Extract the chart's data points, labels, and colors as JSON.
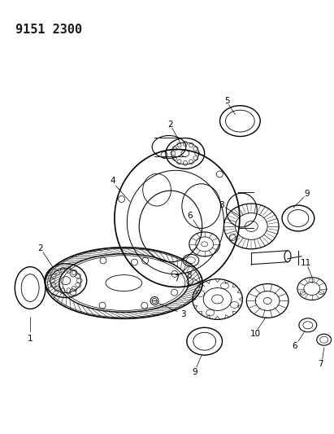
{
  "title": "9151 2300",
  "bg": "#ffffff",
  "lc": "#1a1a1a",
  "fig_w": 4.11,
  "fig_h": 5.33,
  "dpi": 100,
  "title_fs": 11,
  "label_fs": 7.5
}
